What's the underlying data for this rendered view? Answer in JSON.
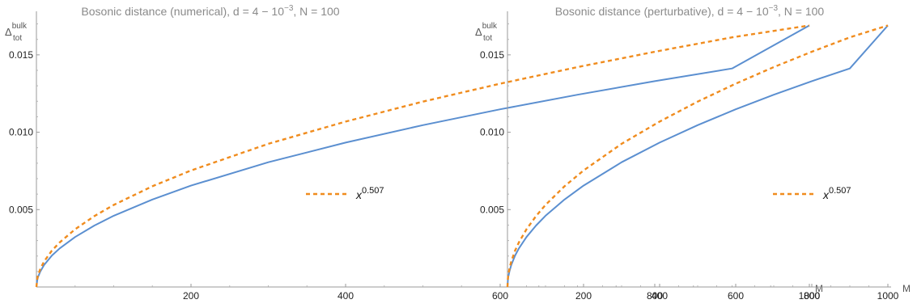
{
  "chart_data": [
    {
      "type": "line",
      "title": "Bosonic distance (numerical), d = 4 − 10",
      "title_exp": "−3",
      "title_suffix": ", N = 100",
      "xlabel": "M",
      "ylabel_main": "Δ",
      "ylabel_sup": "bulk",
      "ylabel_sub": "tot",
      "xlim": [
        0,
        1000
      ],
      "ylim": [
        0,
        0.0175
      ],
      "x_ticks": [
        200,
        400,
        600,
        800,
        1000
      ],
      "y_ticks": [
        0.005,
        0.01,
        0.015
      ],
      "y_tick_labels": [
        "0.005",
        "0.010",
        "0.015"
      ],
      "legend_position": "center-right",
      "series": [
        {
          "color": "#5b8fd0",
          "style": "solid",
          "x": [
            0,
            1,
            2,
            5,
            10,
            20,
            30,
            50,
            75,
            100,
            150,
            200,
            300,
            400,
            500,
            600,
            700,
            800,
            900,
            1000
          ],
          "y": [
            0,
            0.00044,
            0.00063,
            0.001,
            0.00142,
            0.00203,
            0.00249,
            0.00323,
            0.00397,
            0.0046,
            0.00565,
            0.00655,
            0.00806,
            0.00933,
            0.01046,
            0.01148,
            0.01242,
            0.0133,
            0.01412,
            0.0169
          ]
        },
        {
          "name": "x",
          "name_exp": "0.507",
          "color": "#f08c1e",
          "style": "dashed",
          "x": [
            0,
            1,
            2,
            5,
            10,
            20,
            30,
            50,
            75,
            100,
            150,
            200,
            300,
            400,
            500,
            600,
            700,
            800,
            900,
            1000
          ],
          "y": [
            0,
            0.00052,
            0.00074,
            0.00117,
            0.00165,
            0.00235,
            0.00288,
            0.00373,
            0.00458,
            0.0053,
            0.00651,
            0.00753,
            0.00925,
            0.01069,
            0.01198,
            0.01314,
            0.01421,
            0.0152,
            0.01613,
            0.0169
          ]
        }
      ]
    },
    {
      "type": "line",
      "title": "Bosonic distance (perturbative), d = 4 − 10",
      "title_exp": "−3",
      "title_suffix": ", N = 100",
      "xlabel": "M",
      "ylabel_main": "Δ",
      "ylabel_sup": "bulk",
      "ylabel_sub": "tot",
      "xlim": [
        0,
        1000
      ],
      "ylim": [
        0,
        0.0175
      ],
      "x_ticks": [
        200,
        400,
        600,
        800,
        1000
      ],
      "y_ticks": [
        0.005,
        0.01,
        0.015
      ],
      "y_tick_labels": [
        "0.005",
        "0.010",
        "0.015"
      ],
      "legend_position": "center-right",
      "series": [
        {
          "color": "#5b8fd0",
          "style": "solid",
          "x": [
            0,
            1,
            2,
            5,
            10,
            20,
            30,
            50,
            75,
            100,
            150,
            200,
            300,
            400,
            500,
            600,
            700,
            800,
            900,
            1000
          ],
          "y": [
            0,
            0.00044,
            0.00063,
            0.001,
            0.00142,
            0.00203,
            0.00249,
            0.00323,
            0.00397,
            0.0046,
            0.00565,
            0.00655,
            0.00806,
            0.00933,
            0.01046,
            0.01148,
            0.01242,
            0.0133,
            0.01412,
            0.0169
          ]
        },
        {
          "name": "x",
          "name_exp": "0.507",
          "color": "#f08c1e",
          "style": "dashed",
          "x": [
            0,
            1,
            2,
            5,
            10,
            20,
            30,
            50,
            75,
            100,
            150,
            200,
            300,
            400,
            500,
            600,
            700,
            800,
            900,
            1000
          ],
          "y": [
            0,
            0.00052,
            0.00074,
            0.00117,
            0.00165,
            0.00235,
            0.00288,
            0.00373,
            0.00458,
            0.0053,
            0.00651,
            0.00753,
            0.00925,
            0.01069,
            0.01198,
            0.01314,
            0.01421,
            0.0152,
            0.01613,
            0.0169
          ]
        }
      ]
    }
  ]
}
